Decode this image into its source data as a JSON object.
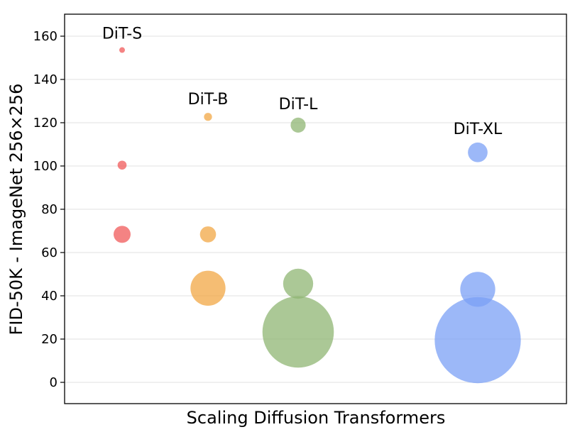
{
  "chart_data": {
    "type": "scatter",
    "title": "",
    "xlabel": "Scaling Diffusion Transformers",
    "ylabel": "FID-50K - ImageNet 256×256",
    "ylim": [
      -10,
      170
    ],
    "yticks": [
      0,
      20,
      40,
      60,
      80,
      100,
      120,
      140,
      160
    ],
    "grid": "horizontal",
    "series": [
      {
        "name": "DiT-S",
        "color": "#f05a5a",
        "points": [
          {
            "y": 153.6,
            "size": 1
          },
          {
            "y": 100.4,
            "size": 2.5
          },
          {
            "y": 68.4,
            "size": 9
          }
        ]
      },
      {
        "name": "DiT-B",
        "color": "#f2a744",
        "points": [
          {
            "y": 122.7,
            "size": 2
          },
          {
            "y": 68.4,
            "size": 8
          },
          {
            "y": 43.5,
            "size": 38
          }
        ]
      },
      {
        "name": "DiT-L",
        "color": "#8fb573",
        "points": [
          {
            "y": 118.9,
            "size": 7
          },
          {
            "y": 45.6,
            "size": 28
          },
          {
            "y": 23.3,
            "size": 158
          }
        ]
      },
      {
        "name": "DiT-XL",
        "color": "#7ba0f5",
        "points": [
          {
            "y": 106.3,
            "size": 12
          },
          {
            "y": 43.0,
            "size": 38
          },
          {
            "y": 19.5,
            "size": 230
          }
        ]
      }
    ]
  }
}
